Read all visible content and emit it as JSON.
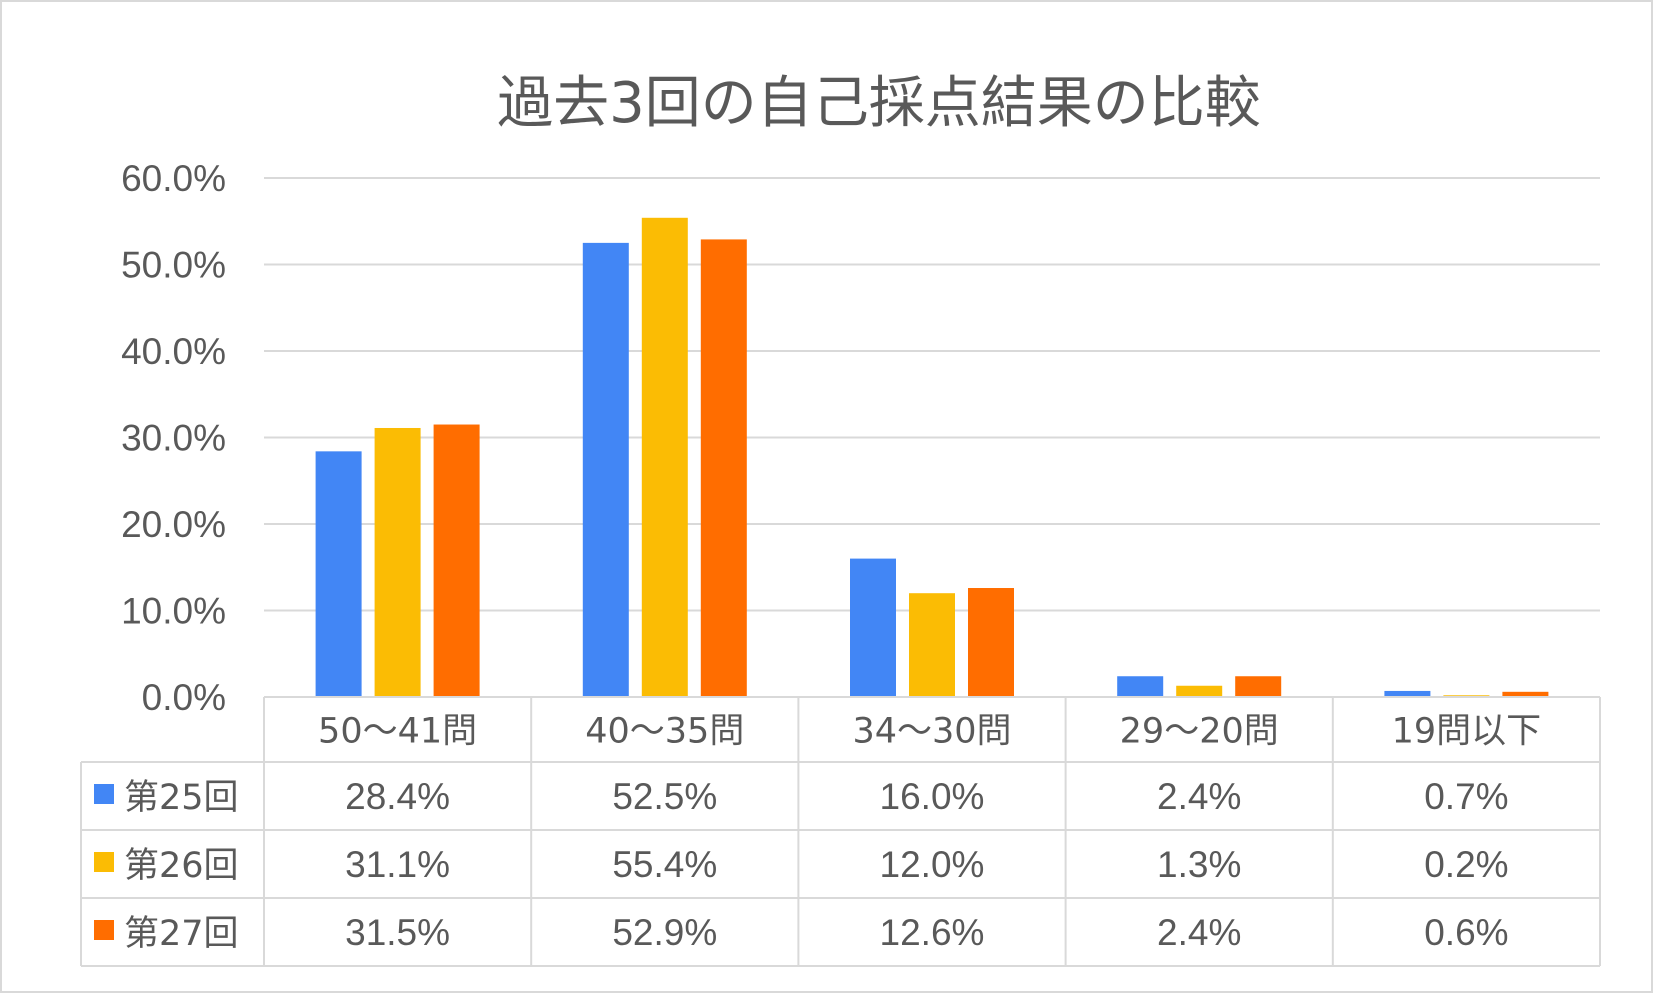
{
  "chart_data": {
    "type": "bar",
    "title": "過去3回の自己採点結果の比較",
    "categories": [
      "50〜41問",
      "40〜35問",
      "34〜30問",
      "29〜20問",
      "19問以下"
    ],
    "ylim": [
      0,
      60
    ],
    "yticks": [
      0,
      10,
      20,
      30,
      40,
      50,
      60
    ],
    "ytick_labels": [
      "0.0%",
      "10.0%",
      "20.0%",
      "30.0%",
      "40.0%",
      "50.0%",
      "60.0%"
    ],
    "grid": true,
    "legend_placement": "data-table-left",
    "series": [
      {
        "name": "第25回",
        "color": "#4286f5",
        "values": [
          28.4,
          52.5,
          16.0,
          2.4,
          0.7
        ],
        "labels": [
          "28.4%",
          "52.5%",
          "16.0%",
          "2.4%",
          "0.7%"
        ]
      },
      {
        "name": "第26回",
        "color": "#fbbc04",
        "values": [
          31.1,
          55.4,
          12.0,
          1.3,
          0.2
        ],
        "labels": [
          "31.1%",
          "55.4%",
          "12.0%",
          "1.3%",
          "0.2%"
        ]
      },
      {
        "name": "第27回",
        "color": "#ff6d00",
        "values": [
          31.5,
          52.9,
          12.6,
          2.4,
          0.6
        ],
        "labels": [
          "31.5%",
          "52.9%",
          "12.6%",
          "2.4%",
          "0.6%"
        ]
      }
    ]
  }
}
